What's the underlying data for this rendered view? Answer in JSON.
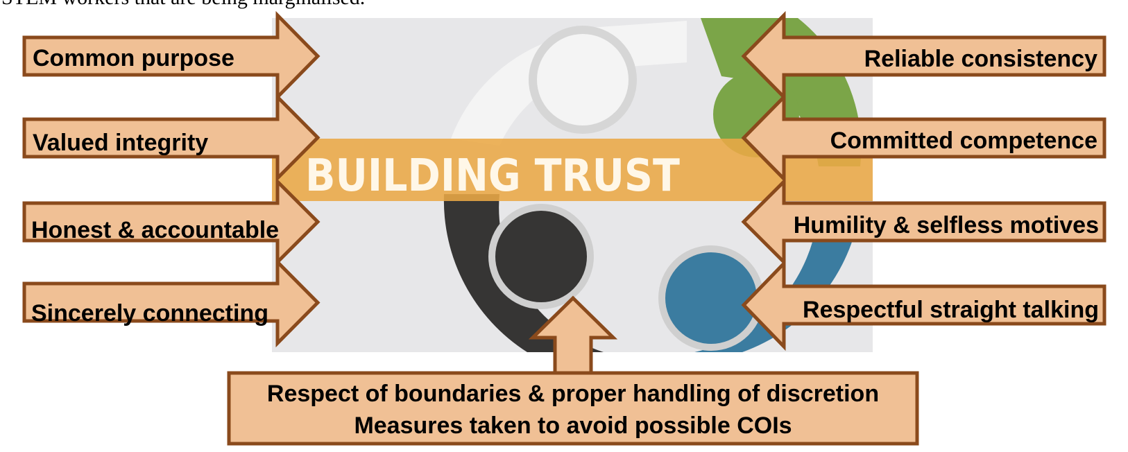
{
  "header_text_partial": "STEM workers that are being marginalised.",
  "image": {
    "banner_title": "BUILDING TRUST",
    "colors": {
      "background": "#e7e7e9",
      "gear_white": "#f4f4f4",
      "gear_green": "#7ba548",
      "gear_dark": "#363534",
      "gear_blue": "#3b7ca0",
      "banner": "#eaa945"
    }
  },
  "arrow_style": {
    "fill": "#f0c095",
    "stroke": "#8a4a1c"
  },
  "left_arrows": [
    {
      "id": "common-purpose",
      "label": "Common purpose"
    },
    {
      "id": "valued-integrity",
      "label": "Valued integrity"
    },
    {
      "id": "honest-accountable",
      "label": "Honest & accountable"
    },
    {
      "id": "sincerely-connecting",
      "label": "Sincerely connecting"
    }
  ],
  "right_arrows": [
    {
      "id": "reliable-consistency",
      "label": "Reliable consistency"
    },
    {
      "id": "committed-competence",
      "label": "Committed competence"
    },
    {
      "id": "humility-selfless",
      "label": "Humility & selfless motives"
    },
    {
      "id": "respectful-talking",
      "label": "Respectful straight talking"
    }
  ],
  "bottom_box": {
    "line1": "Respect of boundaries & proper handling of discretion",
    "line2": "Measures taken to avoid possible COIs"
  }
}
